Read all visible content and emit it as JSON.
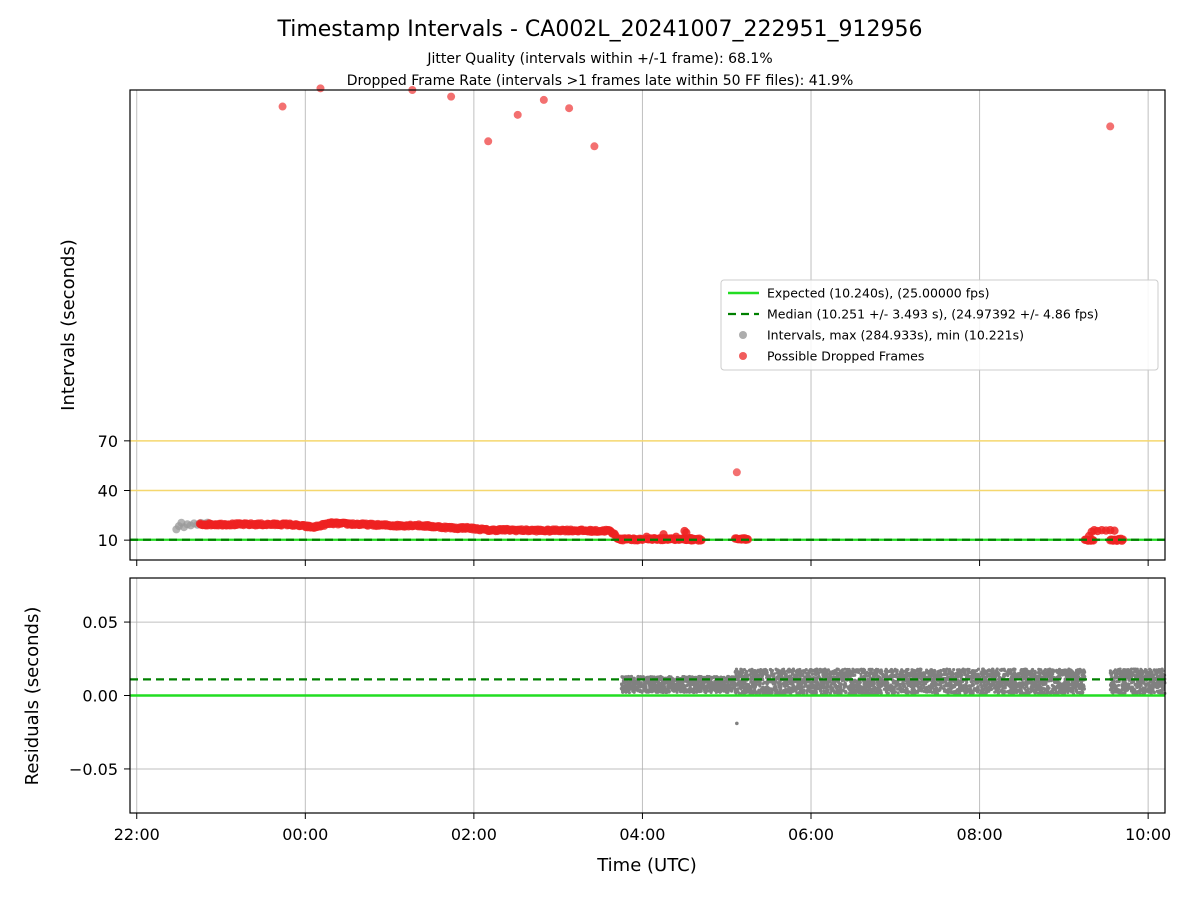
{
  "chart_data": [
    {
      "type": "scatter",
      "title": "Timestamp Intervals - CA002L_20241007_222951_912956",
      "subtitle_lines": [
        "Jitter Quality (intervals within +/-1 frame): 68.1%",
        "Dropped Frame Rate (intervals >1 frames late within 50 FF files): 41.9%"
      ],
      "ylabel": "Intervals (seconds)",
      "xlim_hours": [
        21.92,
        34.2
      ],
      "ylim": [
        -2,
        282
      ],
      "y_ticks": [
        {
          "value": 10,
          "label": "10"
        },
        {
          "value": 40,
          "label": "40"
        },
        {
          "value": 70,
          "label": "70"
        }
      ],
      "hlines": [
        {
          "value": 40,
          "color": "#f5d76e"
        },
        {
          "value": 70,
          "color": "#f5d76e"
        }
      ],
      "grid": {
        "x": true,
        "y": false
      },
      "expected_interval": 10.24,
      "median_interval": 10.251,
      "legend": {
        "placement": "center-right",
        "entries": [
          {
            "kind": "line",
            "color": "#22dd22",
            "label": "Expected (10.240s), (25.00000 fps)"
          },
          {
            "kind": "dashed",
            "color": "#008000",
            "label": "Median (10.251 +/- 3.493 s), (24.97392 +/- 4.86 fps)"
          },
          {
            "kind": "marker",
            "color": "#999999",
            "label": "Intervals, max (284.933s), min (10.221s)"
          },
          {
            "kind": "marker",
            "color": "#ee3333",
            "label": "Possible Dropped Frames"
          }
        ]
      },
      "series": [
        {
          "kind": "gray-points",
          "points": [
            [
              22.47,
              16.5
            ],
            [
              22.5,
              18.5
            ],
            [
              22.53,
              20.5
            ],
            [
              22.56,
              17.8
            ],
            [
              22.6,
              19.6
            ],
            [
              22.64,
              18.9
            ],
            [
              22.68,
              20.1
            ],
            [
              22.72,
              19.3
            ],
            [
              22.76,
              20.4
            ],
            [
              22.8,
              20.0
            ],
            [
              22.84,
              20.6
            ],
            [
              22.88,
              19.8
            ]
          ],
          "segments": [
            {
              "x0": 4.78,
              "x1": 9.28,
              "y": 10.25
            },
            {
              "x0": 9.85,
              "x1": 10.2,
              "y": 10.25
            }
          ]
        },
        {
          "kind": "red-band",
          "start": [
            22.75,
            19.5
          ],
          "end": [
            23.8,
            18.5
          ],
          "breaks": [
            [
              23.8,
              19.5
            ],
            [
              24.1,
              17.8
            ],
            [
              24.2,
              19.0
            ],
            [
              24.3,
              20.2
            ],
            [
              25.1,
              18.7
            ],
            [
              25.3,
              19.0
            ],
            [
              25.8,
              17.2
            ],
            [
              25.9,
              17.5
            ],
            [
              26.2,
              15.9
            ],
            [
              26.3,
              16.2
            ],
            [
              26.9,
              15.7
            ],
            [
              27.0,
              16.0
            ],
            [
              27.5,
              15.5
            ],
            [
              27.6,
              15.8
            ],
            [
              27.68,
              13.0
            ]
          ],
          "tail_blocks": [
            {
              "x0": 27.7,
              "x1": 28.0,
              "y": 10.5
            },
            {
              "x0": 28.05,
              "x1": 28.6,
              "y": 10.6
            },
            {
              "x0": 28.5,
              "x1": 28.7,
              "y": 10.3
            },
            {
              "x0": 29.1,
              "x1": 29.25,
              "y": 10.5
            },
            {
              "x0": 33.25,
              "x1": 33.35,
              "y": 10.2
            },
            {
              "x0": 33.55,
              "x1": 33.7,
              "y": 10.2
            }
          ],
          "clusters": [
            [
              33.3,
              12.5
            ],
            [
              33.33,
              15.0
            ],
            [
              33.36,
              16.0
            ],
            [
              33.4,
              15.5
            ],
            [
              33.45,
              16.0
            ],
            [
              33.5,
              15.8
            ],
            [
              33.55,
              16.0
            ],
            [
              33.6,
              15.7
            ],
            [
              28.05,
              12.0
            ],
            [
              28.25,
              13.5
            ],
            [
              28.4,
              12.0
            ],
            [
              28.5,
              15.5
            ],
            [
              28.52,
              14.5
            ]
          ],
          "outliers": [
            [
              23.73,
              272
            ],
            [
              24.18,
              283
            ],
            [
              25.27,
              282
            ],
            [
              25.73,
              278
            ],
            [
              26.17,
              251
            ],
            [
              26.52,
              267
            ],
            [
              26.83,
              276
            ],
            [
              27.13,
              271
            ],
            [
              27.43,
              248
            ],
            [
              29.12,
              51
            ],
            [
              33.55,
              260
            ]
          ]
        }
      ]
    },
    {
      "type": "scatter",
      "ylabel": "Residuals (seconds)",
      "xlabel": "Time (UTC)",
      "xlim_hours": [
        21.92,
        34.2
      ],
      "ylim": [
        -0.08,
        0.08
      ],
      "y_ticks": [
        {
          "value": -0.05,
          "label": "−0.05"
        },
        {
          "value": 0.0,
          "label": "0.00"
        },
        {
          "value": 0.05,
          "label": "0.05"
        }
      ],
      "x_ticks": [
        {
          "value": 22,
          "label": "22:00"
        },
        {
          "value": 24,
          "label": "00:00"
        },
        {
          "value": 26,
          "label": "02:00"
        },
        {
          "value": 28,
          "label": "04:00"
        },
        {
          "value": 30,
          "label": "06:00"
        },
        {
          "value": 32,
          "label": "08:00"
        },
        {
          "value": 34,
          "label": "10:00"
        }
      ],
      "grid": {
        "x": true,
        "y": true
      },
      "expected_residual": 0.0,
      "median_residual": 0.011,
      "segments": [
        {
          "x0": 27.75,
          "x1": 29.1,
          "ymin": 0.002,
          "ymax": 0.013
        },
        {
          "x0": 29.1,
          "x1": 33.25,
          "ymin": 0.001,
          "ymax": 0.018
        },
        {
          "x0": 33.55,
          "x1": 34.2,
          "ymin": 0.001,
          "ymax": 0.018
        }
      ],
      "outliers": [
        [
          29.12,
          -0.019
        ]
      ]
    }
  ]
}
